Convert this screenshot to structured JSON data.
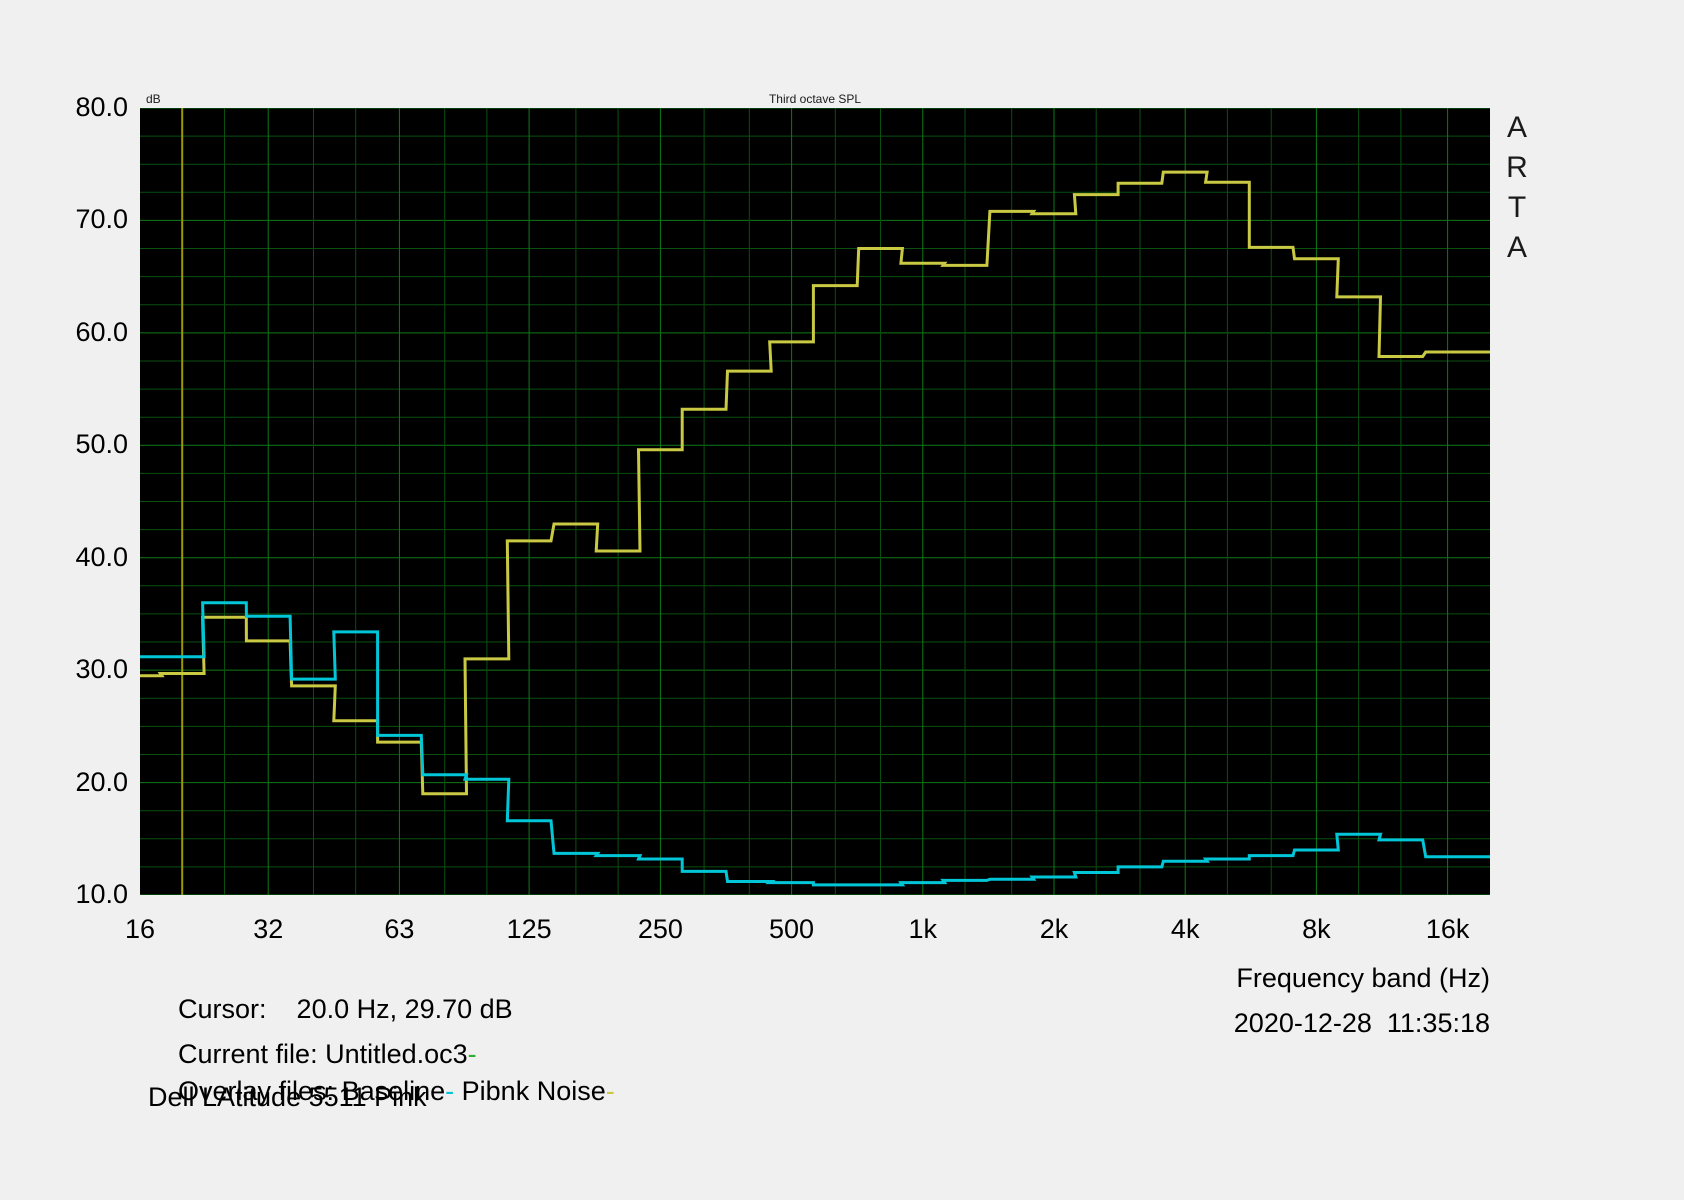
{
  "app": {
    "brand_vertical": [
      "A",
      "R",
      "T",
      "A"
    ]
  },
  "plot": {
    "title": "Third octave SPL",
    "y_unit_label": "dB",
    "x_axis_title": "Frequency band (Hz)",
    "y_ticks": [
      {
        "label": "80.0",
        "db": 80
      },
      {
        "label": "70.0",
        "db": 70
      },
      {
        "label": "60.0",
        "db": 60
      },
      {
        "label": "50.0",
        "db": 50
      },
      {
        "label": "40.0",
        "db": 40
      },
      {
        "label": "30.0",
        "db": 30
      },
      {
        "label": "20.0",
        "db": 20
      },
      {
        "label": "10.0",
        "db": 10
      }
    ],
    "x_ticks": [
      {
        "label": "16",
        "hz": 16
      },
      {
        "label": "32",
        "hz": 31.5
      },
      {
        "label": "63",
        "hz": 63
      },
      {
        "label": "125",
        "hz": 125
      },
      {
        "label": "250",
        "hz": 250
      },
      {
        "label": "500",
        "hz": 500
      },
      {
        "label": "1k",
        "hz": 1000
      },
      {
        "label": "2k",
        "hz": 2000
      },
      {
        "label": "4k",
        "hz": 4000
      },
      {
        "label": "8k",
        "hz": 8000
      },
      {
        "label": "16k",
        "hz": 16000
      }
    ]
  },
  "status": {
    "cursor_label": "Cursor:",
    "cursor_value": "20.0 Hz, 29.70 dB",
    "datetime": "2020-12-28  11:35:18",
    "current_file_label": "Current file: ",
    "current_file_name": "Untitled.oc3",
    "current_file_marker": "-",
    "overlay_label": "Overlay files: ",
    "overlay_1_name": "Baseline",
    "overlay_1_marker": "-",
    "overlay_separator": " ",
    "overlay_2_name": "Pibnk Noise",
    "overlay_2_marker": "-",
    "note": "Dell LAtitude 5511 Pink"
  },
  "colors": {
    "window_bg": "#f0f0f0",
    "plot_bg": "#000000",
    "grid_minor": "#09500f",
    "grid_major": "#0d7a17",
    "cursor_line": "#9a9a00",
    "current_file": "#2fae2f",
    "overlay_baseline": "#00c6d8",
    "overlay_pink": "#c9c943",
    "text": "#000000"
  },
  "chart_data": {
    "type": "line",
    "subtype": "third-octave-step-spl",
    "title": "Third octave SPL",
    "xlabel": "Frequency band (Hz)",
    "ylabel": "dB",
    "x_scale": "log",
    "xlim_hz": [
      16,
      20000
    ],
    "ylim": [
      10,
      80
    ],
    "y_major_step": 10,
    "y_minor_step": 2.5,
    "grid": true,
    "legend_position": "status-text-bottom",
    "bands_hz": [
      16,
      20,
      25,
      31.5,
      40,
      50,
      63,
      80,
      100,
      125,
      160,
      200,
      250,
      315,
      400,
      500,
      630,
      800,
      1000,
      1250,
      1600,
      2000,
      2500,
      3150,
      4000,
      5000,
      6300,
      8000,
      10000,
      12500,
      16000
    ],
    "series": [
      {
        "name": "Pibnk Noise",
        "color": "#c9c943",
        "values_db": [
          29.5,
          29.7,
          34.7,
          32.6,
          28.6,
          25.5,
          23.6,
          19.0,
          31.0,
          41.5,
          43.0,
          40.6,
          49.6,
          53.2,
          56.6,
          59.2,
          64.2,
          67.5,
          66.2,
          66.0,
          70.8,
          70.6,
          72.3,
          73.3,
          74.3,
          73.4,
          67.6,
          66.6,
          63.2,
          57.9,
          58.3
        ]
      },
      {
        "name": "Baseline",
        "color": "#00c6d8",
        "values_db": [
          31.2,
          31.2,
          36.0,
          34.8,
          29.2,
          33.4,
          24.2,
          20.7,
          20.3,
          16.6,
          13.7,
          13.5,
          13.2,
          12.1,
          11.2,
          11.1,
          10.9,
          10.9,
          11.1,
          11.3,
          11.4,
          11.6,
          12.0,
          12.5,
          13.0,
          13.2,
          13.5,
          14.0,
          15.4,
          14.9,
          13.4
        ]
      }
    ],
    "cursor": {
      "freq_hz": 20.0,
      "db": 29.7
    }
  }
}
